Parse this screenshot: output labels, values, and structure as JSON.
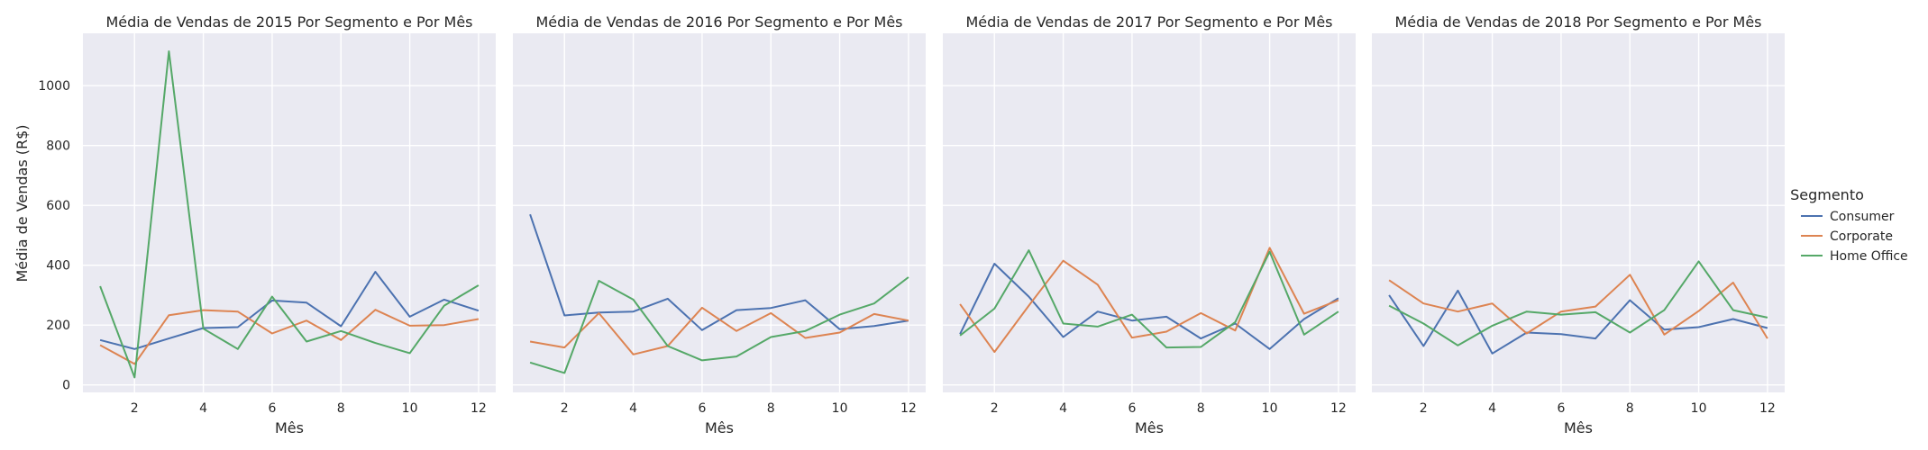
{
  "figure": {
    "ylabel": "Média de Vendas (R$)",
    "legend_title": "Segmento",
    "legend_placement": "right",
    "grid": true
  },
  "series_colors": {
    "Consumer": "#4c72b0",
    "Corporate": "#dd8452",
    "Home Office": "#55a868"
  },
  "chart_data": [
    {
      "type": "line",
      "title": "Média de Vendas de 2015 Por Segmento e Por Mês",
      "xlabel": "Mês",
      "ylabel": "Média de Vendas (R$)",
      "x": [
        1,
        2,
        3,
        4,
        5,
        6,
        7,
        8,
        9,
        10,
        11,
        12
      ],
      "xticks": [
        2,
        4,
        6,
        8,
        10,
        12
      ],
      "yticks": [
        0,
        200,
        400,
        600,
        800,
        1000
      ],
      "xlim": [
        0.5,
        12.5
      ],
      "ylim": [
        -25,
        1175
      ],
      "series": [
        {
          "name": "Consumer",
          "values": [
            150,
            120,
            155,
            190,
            193,
            282,
            275,
            196,
            378,
            228,
            285,
            248
          ]
        },
        {
          "name": "Corporate",
          "values": [
            133,
            70,
            233,
            250,
            245,
            172,
            215,
            150,
            251,
            198,
            200,
            220
          ]
        },
        {
          "name": "Home Office",
          "values": [
            330,
            25,
            1115,
            188,
            120,
            295,
            145,
            180,
            140,
            106,
            265,
            333
          ]
        }
      ]
    },
    {
      "type": "line",
      "title": "Média de Vendas de 2016 Por Segmento e Por Mês",
      "xlabel": "Mês",
      "x": [
        1,
        2,
        3,
        4,
        5,
        6,
        7,
        8,
        9,
        10,
        11,
        12
      ],
      "xticks": [
        2,
        4,
        6,
        8,
        10,
        12
      ],
      "xlim": [
        0.5,
        12.5
      ],
      "ylim": [
        -25,
        1175
      ],
      "series": [
        {
          "name": "Consumer",
          "values": [
            570,
            232,
            242,
            245,
            288,
            183,
            250,
            257,
            283,
            186,
            197,
            215
          ]
        },
        {
          "name": "Corporate",
          "values": [
            145,
            125,
            240,
            102,
            130,
            258,
            180,
            240,
            157,
            175,
            237,
            215
          ]
        },
        {
          "name": "Home Office",
          "values": [
            75,
            40,
            348,
            285,
            130,
            82,
            95,
            160,
            180,
            235,
            272,
            360
          ]
        }
      ]
    },
    {
      "type": "line",
      "title": "Média de Vendas de 2017 Por Segmento e Por Mês",
      "xlabel": "Mês",
      "x": [
        1,
        2,
        3,
        4,
        5,
        6,
        7,
        8,
        9,
        10,
        11,
        12
      ],
      "xticks": [
        2,
        4,
        6,
        8,
        10,
        12
      ],
      "xlim": [
        0.5,
        12.5
      ],
      "ylim": [
        -25,
        1175
      ],
      "series": [
        {
          "name": "Consumer",
          "values": [
            170,
            405,
            295,
            160,
            245,
            215,
            228,
            155,
            205,
            120,
            220,
            290
          ]
        },
        {
          "name": "Corporate",
          "values": [
            270,
            110,
            265,
            415,
            335,
            158,
            178,
            240,
            182,
            458,
            238,
            283
          ]
        },
        {
          "name": "Home Office",
          "values": [
            165,
            255,
            450,
            205,
            195,
            235,
            125,
            127,
            210,
            445,
            168,
            245
          ]
        }
      ]
    },
    {
      "type": "line",
      "title": "Média de Vendas de 2018 Por Segmento e Por Mês",
      "xlabel": "Mês",
      "x": [
        1,
        2,
        3,
        4,
        5,
        6,
        7,
        8,
        9,
        10,
        11,
        12
      ],
      "xticks": [
        2,
        4,
        6,
        8,
        10,
        12
      ],
      "xlim": [
        0.5,
        12.5
      ],
      "ylim": [
        -25,
        1175
      ],
      "series": [
        {
          "name": "Consumer",
          "values": [
            300,
            130,
            315,
            105,
            175,
            170,
            155,
            283,
            185,
            193,
            220,
            190
          ]
        },
        {
          "name": "Corporate",
          "values": [
            350,
            272,
            245,
            272,
            172,
            245,
            262,
            368,
            168,
            247,
            342,
            155
          ]
        },
        {
          "name": "Home Office",
          "values": [
            265,
            205,
            132,
            198,
            245,
            235,
            243,
            175,
            250,
            413,
            250,
            225
          ]
        }
      ]
    }
  ]
}
